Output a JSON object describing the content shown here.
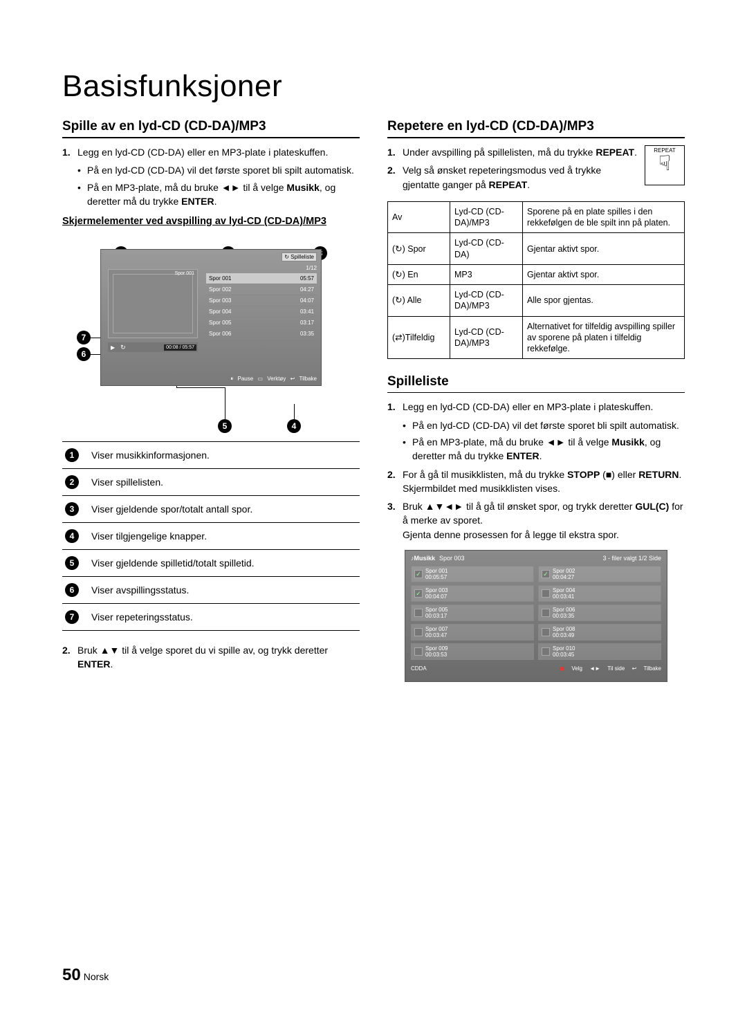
{
  "main_title": "Basisfunksjoner",
  "page_number": "50",
  "page_lang": "Norsk",
  "left": {
    "section_title": "Spille av en lyd-CD (CD-DA)/MP3",
    "step1_num": "1.",
    "step1": "Legg en lyd-CD (CD-DA) eller en MP3-plate i plateskuffen.",
    "bullet1": "På en lyd-CD (CD-DA) vil det første sporet bli spilt automatisk.",
    "bullet2a": "På en MP3-plate, må du bruke ◄► til å velge ",
    "bullet2b": "Musikk",
    "bullet2c": ", og deretter må du trykke ",
    "bullet2d": "ENTER",
    "bullet2e": ".",
    "sub_title": "Skjermelementer ved avspilling av lyd-CD (CD-DA)/MP3",
    "step2_num": "2.",
    "step2a": "Bruk ▲▼ til å velge sporet du vi spille av, og trykk deretter ",
    "step2b": "ENTER",
    "step2c": "."
  },
  "figure": {
    "playlist_label": "Spilleliste",
    "fraction": "1/12",
    "cover_track": "Spor 001",
    "time": "00:08 / 05:57",
    "tracks": [
      {
        "n": "Spor 001",
        "t": "05:57"
      },
      {
        "n": "Spor 002",
        "t": "04:27"
      },
      {
        "n": "Spor 003",
        "t": "04:07"
      },
      {
        "n": "Spor 004",
        "t": "03:41"
      },
      {
        "n": "Spor 005",
        "t": "03:17"
      },
      {
        "n": "Spor 006",
        "t": "03:35"
      }
    ],
    "btn_pause": "Pause",
    "btn_tools": "Verktøy",
    "btn_back": "Tilbake"
  },
  "desc": [
    "Viser musikkinformasjonen.",
    "Viser spillelisten.",
    "Viser gjeldende spor/totalt antall spor.",
    "Viser tilgjengelige knapper.",
    "Viser gjeldende spilletid/totalt spilletid.",
    "Viser avspillingsstatus.",
    "Viser repeteringsstatus."
  ],
  "right": {
    "section_title": "Repetere en lyd-CD (CD-DA)/MP3",
    "repeat_label": "REPEAT",
    "step1_num": "1.",
    "step1a": "Under avspilling på spillelisten, må du trykke ",
    "step1b": "REPEAT",
    "step1c": ".",
    "step2_num": "2.",
    "step2a": "Velg så ønsket repeteringsmodus ved å trykke gjentatte ganger på ",
    "step2b": "REPEAT",
    "step2c": "."
  },
  "modes": [
    {
      "c1": "Av",
      "c2": "Lyd-CD (CD-DA)/MP3",
      "c3": "Sporene på en plate spilles i den rekkefølgen de ble spilt inn på platen."
    },
    {
      "c1": "(↻) Spor",
      "c2": "Lyd-CD (CD-DA)",
      "c3": "Gjentar aktivt spor."
    },
    {
      "c1": "(↻) En",
      "c2": "MP3",
      "c3": "Gjentar aktivt spor."
    },
    {
      "c1": "(↻) Alle",
      "c2": "Lyd-CD (CD-DA)/MP3",
      "c3": "Alle spor gjentas."
    },
    {
      "c1": "(⇄)Tilfeldig",
      "c2": "Lyd-CD (CD-DA)/MP3",
      "c3": "Alternativet for tilfeldig avspilling spiller av sporene på platen i tilfeldig rekkefølge."
    }
  ],
  "spilleliste": {
    "title": "Spilleliste",
    "s1_num": "1.",
    "s1": "Legg en lyd-CD (CD-DA) eller en MP3-plate i plateskuffen.",
    "b1": "På en lyd-CD (CD-DA) vil det første sporet bli spilt automatisk.",
    "b2a": "På en MP3-plate, må du bruke ◄► til å velge ",
    "b2b": "Musikk",
    "b2c": ", og deretter må du trykke ",
    "b2d": "ENTER",
    "b2e": ".",
    "s2_num": "2.",
    "s2a": "For å gå til musikklisten, må du trykke ",
    "s2b": "STOPP",
    "s2c": " (■) eller ",
    "s2d": "RETURN",
    "s2e": ".",
    "s2f": "Skjermbildet med musikklisten vises.",
    "s3_num": "3.",
    "s3a": "Bruk ▲▼◄► til å gå til ønsket spor, og trykk deretter ",
    "s3b": "GUL(C)",
    "s3c": " for å merke av sporet.",
    "s3d": "Gjenta denne prosessen for å legge til ekstra spor."
  },
  "lib": {
    "head_title": "Musikk",
    "head_sub": "Spor 003",
    "head_right": "3 - filer valgt   1/2 Side",
    "items": [
      {
        "chk": true,
        "n": "Spor 001",
        "t": "00:05:57"
      },
      {
        "chk": true,
        "n": "Spor 002",
        "t": "00:04:27"
      },
      {
        "chk": true,
        "n": "Spor 003",
        "t": "00:04:07"
      },
      {
        "chk": false,
        "n": "Spor 004",
        "t": "00:03:41"
      },
      {
        "chk": false,
        "n": "Spor 005",
        "t": "00:03:17"
      },
      {
        "chk": false,
        "n": "Spor 006",
        "t": "00:03:35"
      },
      {
        "chk": false,
        "n": "Spor 007",
        "t": "00:03:47"
      },
      {
        "chk": false,
        "n": "Spor 008",
        "t": "00:03:49"
      },
      {
        "chk": false,
        "n": "Spor 009",
        "t": "00:03:53"
      },
      {
        "chk": false,
        "n": "Spor 010",
        "t": "00:03:45"
      }
    ],
    "foot_left": "CDDA",
    "foot_velg": "Velg",
    "foot_side": "Til side",
    "foot_back": "Tilbake"
  }
}
